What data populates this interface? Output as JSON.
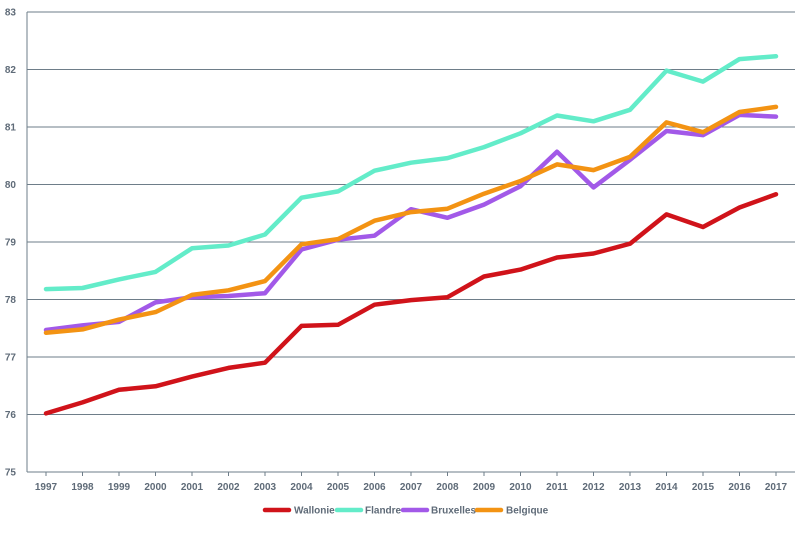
{
  "chart_data": {
    "type": "line",
    "x": [
      "1997",
      "1998",
      "1999",
      "2000",
      "2001",
      "2002",
      "2003",
      "2004",
      "2005",
      "2006",
      "2007",
      "2008",
      "2009",
      "2010",
      "2011",
      "2012",
      "2013",
      "2014",
      "2015",
      "2016",
      "2017"
    ],
    "ylim": [
      75,
      83
    ],
    "yticks": [
      "75",
      "76",
      "77",
      "78",
      "79",
      "80",
      "81",
      "82",
      "83"
    ],
    "grid": "horizontal",
    "legend_position": "bottom-center",
    "series": [
      {
        "name": "Wallonie",
        "color": "#d0131a",
        "values": [
          76.02,
          76.21,
          76.43,
          76.49,
          76.66,
          76.81,
          76.9,
          77.54,
          77.56,
          77.91,
          77.99,
          78.04,
          78.4,
          78.52,
          78.73,
          78.8,
          78.97,
          79.48,
          79.26,
          79.6,
          79.83
        ]
      },
      {
        "name": "Flandre",
        "color": "#63ecc9",
        "values": [
          78.18,
          78.2,
          78.35,
          78.48,
          78.89,
          78.94,
          79.13,
          79.77,
          79.88,
          80.24,
          80.38,
          80.46,
          80.65,
          80.89,
          81.2,
          81.1,
          81.3,
          81.98,
          81.79,
          82.18,
          82.23
        ]
      },
      {
        "name": "Bruxelles",
        "color": "#a259e8",
        "values": [
          77.47,
          77.55,
          77.61,
          77.95,
          78.04,
          78.06,
          78.11,
          78.87,
          79.04,
          79.11,
          79.57,
          79.42,
          79.65,
          79.97,
          80.57,
          79.95,
          80.43,
          80.93,
          80.86,
          81.21,
          81.18
        ]
      },
      {
        "name": "Belgique",
        "color": "#f39313",
        "values": [
          77.42,
          77.48,
          77.65,
          77.78,
          78.08,
          78.16,
          78.32,
          78.96,
          79.05,
          79.37,
          79.52,
          79.58,
          79.84,
          80.06,
          80.35,
          80.25,
          80.48,
          81.08,
          80.91,
          81.26,
          81.35
        ]
      }
    ]
  }
}
